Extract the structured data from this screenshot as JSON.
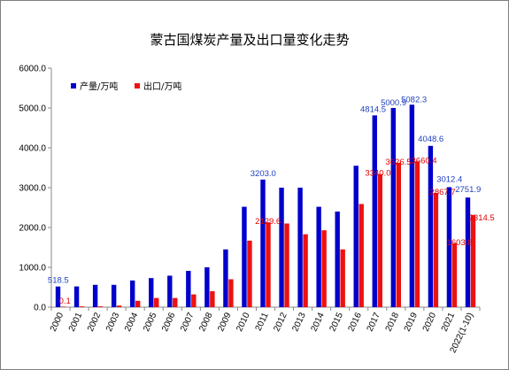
{
  "chart_data": {
    "type": "bar",
    "title": "蒙古国煤炭产量及出口量变化走势",
    "categories": [
      "2000",
      "2001",
      "2002",
      "2003",
      "2004",
      "2005",
      "2006",
      "2007",
      "2008",
      "2009",
      "2010",
      "2011",
      "2012",
      "2013",
      "2014",
      "2015",
      "2016",
      "2017",
      "2018",
      "2019",
      "2020",
      "2021",
      "2022(1-10)"
    ],
    "series": [
      {
        "name": "产量/万吨",
        "color": "#0000cc",
        "label_color": "#1f3fbf",
        "values": [
          518.5,
          520,
          560,
          560,
          670,
          730,
          790,
          910,
          1000,
          1450,
          2520,
          3203.0,
          3000,
          3000,
          2520,
          2400,
          3550,
          4814.5,
          5000.9,
          5082.3,
          4048.6,
          3012.4,
          2751.9
        ],
        "data_labels": {
          "0": "518.5",
          "11": "3203.0",
          "17": "4814.5",
          "18": "5000.9",
          "19": "5082.3",
          "20": "4048.6",
          "21": "3012.4",
          "22": "2751.9"
        }
      },
      {
        "name": "出口/万吨",
        "color": "#ee1111",
        "label_color": "#e00000",
        "values": [
          0.1,
          20,
          20,
          40,
          160,
          230,
          230,
          320,
          400,
          700,
          1670,
          2129.6,
          2100,
          1830,
          1930,
          1450,
          2590,
          3340.0,
          3626.5,
          3660.4,
          2867.7,
          1603.8,
          2314.5
        ],
        "data_labels": {
          "0": "0.1",
          "11": "2129.6",
          "17": "3340.0",
          "18": "3626.5",
          "19": "3660.4",
          "20": "2867.7",
          "21": "1603.8",
          "22": "2314.5"
        }
      }
    ],
    "ylim": [
      0,
      6000
    ],
    "yticks": [
      "0.0",
      "1000.0",
      "2000.0",
      "3000.0",
      "4000.0",
      "5000.0",
      "6000.0"
    ],
    "ytick_values": [
      0,
      1000,
      2000,
      3000,
      4000,
      5000,
      6000
    ],
    "grid": false,
    "legend_position": "top-left"
  }
}
